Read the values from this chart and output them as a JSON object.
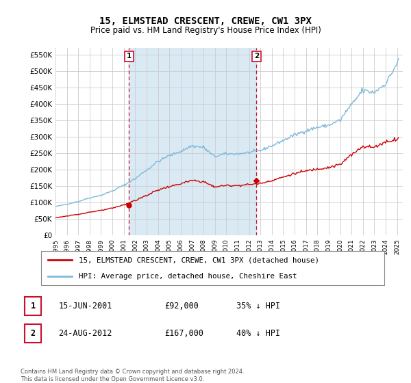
{
  "title": "15, ELMSTEAD CRESCENT, CREWE, CW1 3PX",
  "subtitle": "Price paid vs. HM Land Registry's House Price Index (HPI)",
  "legend_line1": "15, ELMSTEAD CRESCENT, CREWE, CW1 3PX (detached house)",
  "legend_line2": "HPI: Average price, detached house, Cheshire East",
  "footnote": "Contains HM Land Registry data © Crown copyright and database right 2024.\nThis data is licensed under the Open Government Licence v3.0.",
  "table_rows": [
    {
      "num": "1",
      "date": "15-JUN-2001",
      "price": "£92,000",
      "relation": "35% ↓ HPI"
    },
    {
      "num": "2",
      "date": "24-AUG-2012",
      "price": "£167,000",
      "relation": "40% ↓ HPI"
    }
  ],
  "sale1_year": 2001.46,
  "sale1_price": 92000,
  "sale2_year": 2012.65,
  "sale2_price": 167000,
  "hpi_color": "#7db9d8",
  "property_color": "#cc0000",
  "marker_box_color": "#c8102e",
  "shade_color": "#daeaf5",
  "plot_bg": "#ffffff",
  "grid_color": "#cccccc",
  "ylim": [
    0,
    570000
  ],
  "yticks": [
    0,
    50000,
    100000,
    150000,
    200000,
    250000,
    300000,
    350000,
    400000,
    450000,
    500000,
    550000
  ],
  "ytick_labels": [
    "£0",
    "£50K",
    "£100K",
    "£150K",
    "£200K",
    "£250K",
    "£300K",
    "£350K",
    "£400K",
    "£450K",
    "£500K",
    "£550K"
  ],
  "xlim_start": 1995.0,
  "xlim_end": 2025.5
}
